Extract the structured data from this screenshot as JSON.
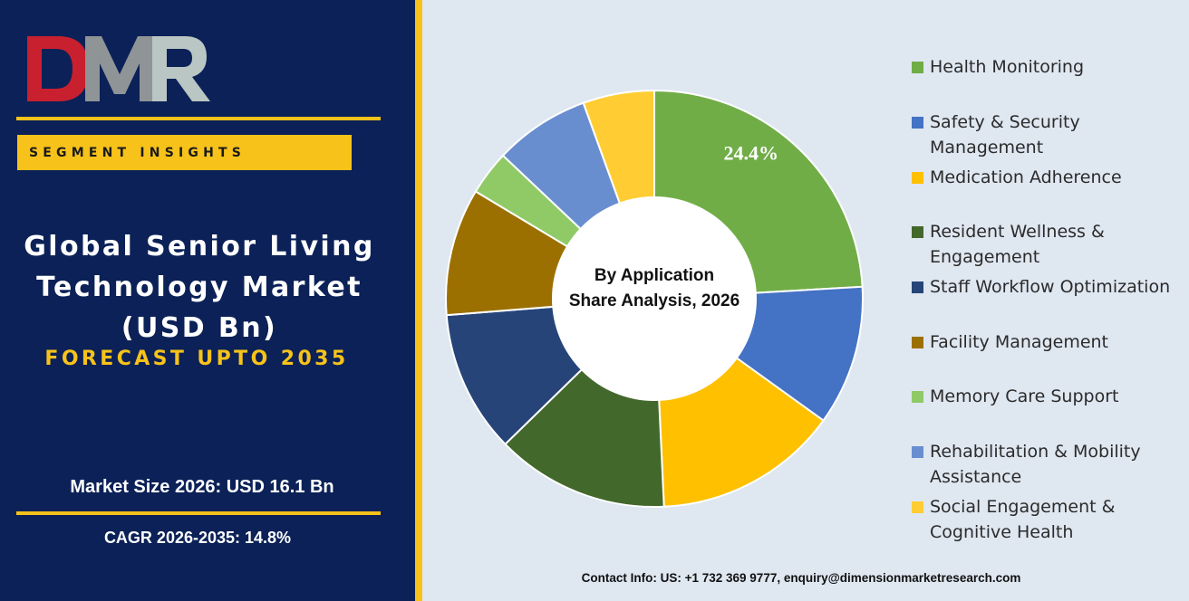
{
  "logo": {
    "text": "DMR",
    "colors": {
      "d": "#c8202e",
      "m": "#8f9497",
      "r": "#b9c6c3"
    }
  },
  "sidebar": {
    "badge": "SEGMENT INSIGHTS",
    "title_lines": [
      "Global Senior Living",
      "Technology Market",
      "(USD Bn)"
    ],
    "forecast": "FORECAST UPTO 2035",
    "market_size": "Market Size 2026: USD 16.1 Bn",
    "cagr": "CAGR 2026-2035: 14.8%"
  },
  "colors": {
    "navy": "#0b2157",
    "accent": "#f7c21a",
    "background": "#dfe7f1"
  },
  "chart_data": {
    "type": "pie",
    "donut": true,
    "center_label": [
      "By Application",
      "Share Analysis, 2026"
    ],
    "categories": [
      "Health Monitoring",
      "Safety & Security Management",
      "Medication Adherence",
      "Resident Wellness & Engagement",
      "Staff Workflow Optimization",
      "Facility Management",
      "Memory Care Support",
      "Rehabilitation & Mobility Assistance",
      "Social Engagement & Cognitive Health"
    ],
    "legend_lines": [
      [
        "Health Monitoring"
      ],
      [
        "Safety & Security",
        "Management"
      ],
      [
        "Medication Adherence"
      ],
      [
        "Resident Wellness &",
        "Engagement"
      ],
      [
        "Staff Workflow Optimization"
      ],
      [
        "Facility Management"
      ],
      [
        "Memory Care Support"
      ],
      [
        "Rehabilitation & Mobility",
        "Assistance"
      ],
      [
        "Social Engagement &",
        "Cognitive Health"
      ]
    ],
    "values": [
      24.4,
      11.0,
      14.5,
      13.6,
      11.2,
      10.0,
      3.5,
      7.5,
      5.6
    ],
    "colors": [
      "#70ad47",
      "#4472c4",
      "#ffc000",
      "#43682b",
      "#264478",
      "#9c7000",
      "#8fca67",
      "#698ed0",
      "#ffcd33"
    ],
    "data_labels": [
      {
        "index": 0,
        "text": "24.4%"
      }
    ],
    "legend_position": "right"
  },
  "contact": "Contact Info: US: +1 732 369 9777, enquiry@dimensionmarketresearch.com"
}
